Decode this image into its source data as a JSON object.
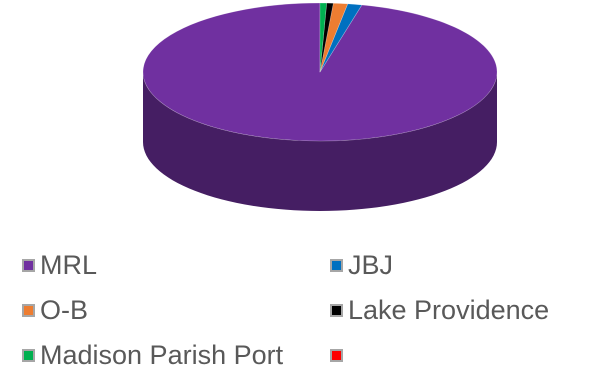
{
  "chart_data": {
    "type": "pie",
    "style": "3d",
    "title": "",
    "legend_position": "bottom",
    "series": [
      {
        "name": "MRL",
        "value": 96.2,
        "color": "#7030a0"
      },
      {
        "name": "JBJ",
        "value": 1.3,
        "color": "#0070c0"
      },
      {
        "name": "O-B",
        "value": 1.3,
        "color": "#ed7d31"
      },
      {
        "name": "Lake Providence",
        "value": 0.6,
        "color": "#000000"
      },
      {
        "name": "Madison Parish Port",
        "value": 0.6,
        "color": "#00b050"
      },
      {
        "name": "",
        "value": 0.0,
        "color": "#ff0000"
      }
    ]
  }
}
